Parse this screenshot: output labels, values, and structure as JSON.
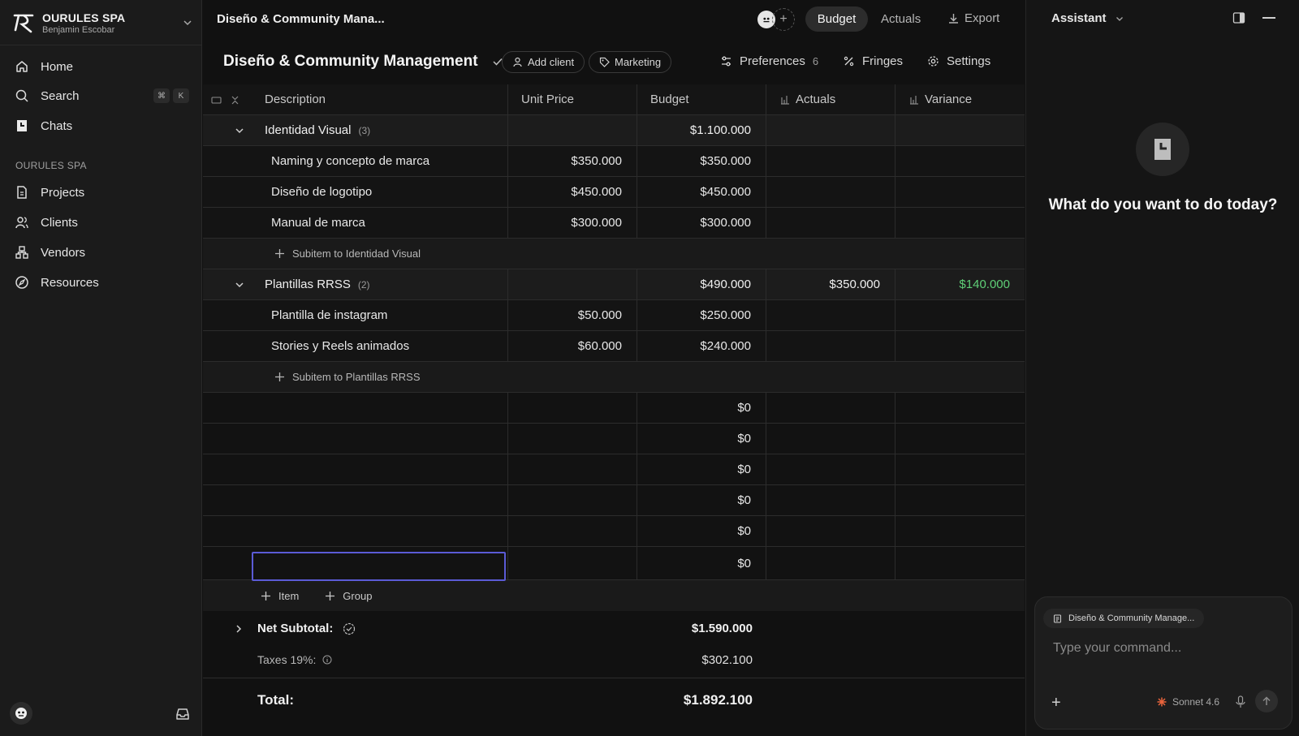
{
  "sidebar": {
    "org_name": "OURULES SPA",
    "user_name": "Benjamin Escobar",
    "nav": [
      {
        "label": "Home",
        "icon": "home-icon"
      },
      {
        "label": "Search",
        "icon": "search-icon",
        "shortcut": [
          "⌘",
          "K"
        ]
      },
      {
        "label": "Chats",
        "icon": "chats-icon"
      }
    ],
    "section_label": "OURULES SPA",
    "section_nav": [
      {
        "label": "Projects",
        "icon": "projects-icon"
      },
      {
        "label": "Clients",
        "icon": "clients-icon"
      },
      {
        "label": "Vendors",
        "icon": "vendors-icon"
      },
      {
        "label": "Resources",
        "icon": "resources-icon"
      }
    ]
  },
  "topbar": {
    "doc_title": "Diseño & Community Mana...",
    "tabs": {
      "budget": "Budget",
      "actuals": "Actuals",
      "export": "Export"
    }
  },
  "header": {
    "title": "Diseño & Community Management",
    "add_client": "Add client",
    "tag": "Marketing",
    "preferences": "Preferences",
    "preferences_count": "6",
    "fringes": "Fringes",
    "settings": "Settings"
  },
  "table": {
    "columns": {
      "description": "Description",
      "unit_price": "Unit Price",
      "budget": "Budget",
      "actuals": "Actuals",
      "variance": "Variance"
    },
    "groups": [
      {
        "name": "Identidad Visual",
        "count": "(3)",
        "budget": "$1.100.000",
        "actuals": "",
        "variance": "",
        "items": [
          {
            "description": "Naming y concepto de marca",
            "unit_price": "$350.000",
            "budget": "$350.000"
          },
          {
            "description": "Diseño de logotipo",
            "unit_price": "$450.000",
            "budget": "$450.000"
          },
          {
            "description": "Manual de marca",
            "unit_price": "$300.000",
            "budget": "$300.000"
          }
        ],
        "subitem_label": "Subitem to Identidad Visual"
      },
      {
        "name": "Plantillas RRSS",
        "count": "(2)",
        "budget": "$490.000",
        "actuals": "$350.000",
        "variance": "$140.000",
        "items": [
          {
            "description": "Plantilla de instagram",
            "unit_price": "$50.000",
            "budget": "$250.000"
          },
          {
            "description": "Stories y Reels animados",
            "unit_price": "$60.000",
            "budget": "$240.000"
          }
        ],
        "subitem_label": "Subitem to Plantillas RRSS"
      }
    ],
    "blank_rows": [
      "$0",
      "$0",
      "$0",
      "$0",
      "$0",
      "$0"
    ],
    "add_item": "Item",
    "add_group": "Group"
  },
  "totals": {
    "net_subtotal_label": "Net Subtotal:",
    "net_subtotal": "$1.590.000",
    "taxes_label": "Taxes 19%:",
    "taxes": "$302.100",
    "total_label": "Total:",
    "total": "$1.892.100"
  },
  "assistant": {
    "title": "Assistant",
    "question": "What do you want to do today?",
    "context_chip": "Diseño & Community Manage...",
    "placeholder": "Type your command...",
    "model": "Sonnet 4.6"
  },
  "colors": {
    "accent_selection": "#5b5bd6",
    "positive_variance": "#5fcf77",
    "model_icon": "#e8643c"
  }
}
